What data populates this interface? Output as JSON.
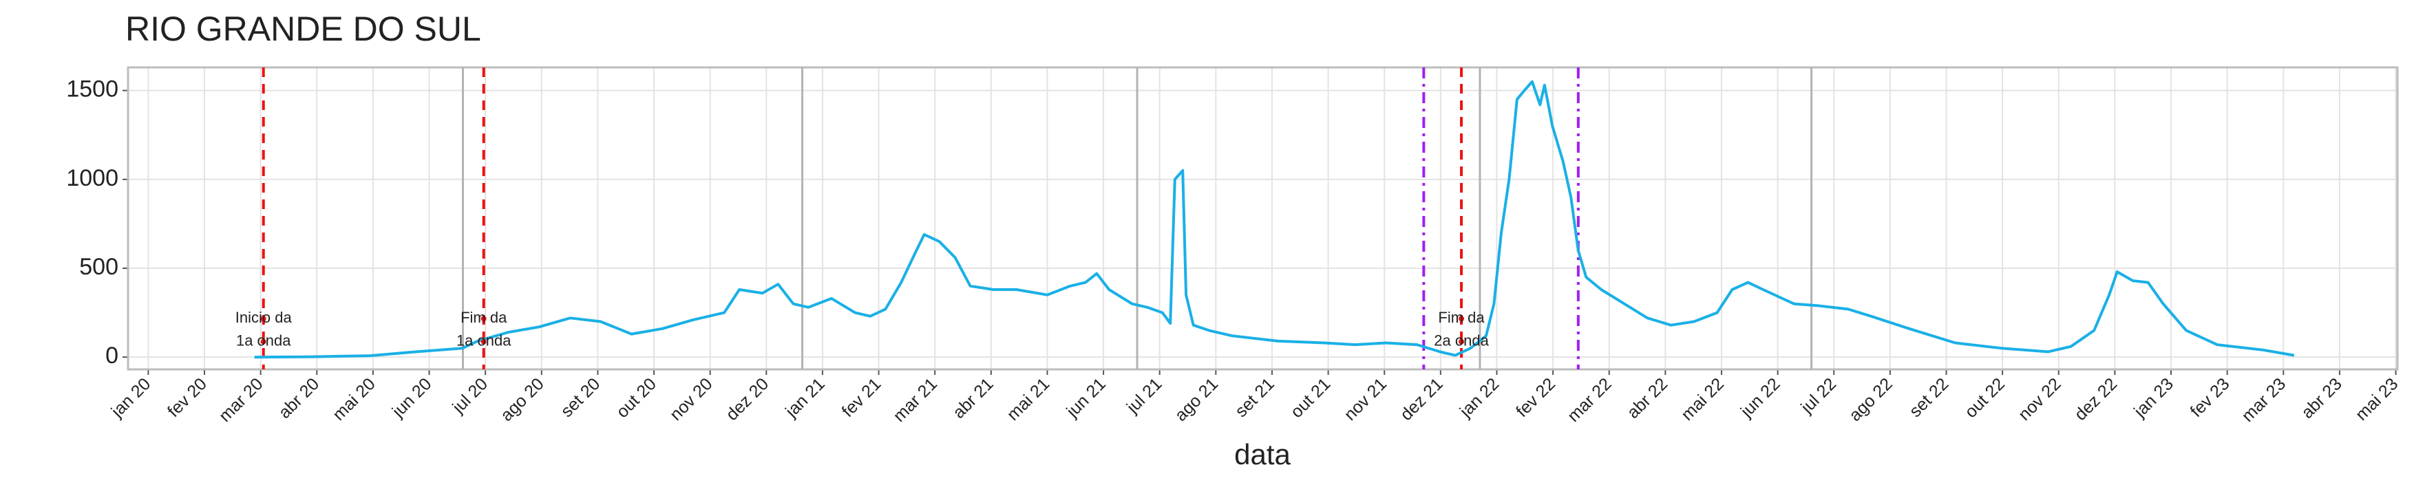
{
  "chart_data": {
    "type": "line",
    "title": "RIO GRANDE DO SUL",
    "x_label": "data",
    "xlim": [
      -0.36,
      40.03
    ],
    "ylim": [
      -69,
      1630
    ],
    "xticks": [
      {
        "value": 0,
        "label": "jan 20"
      },
      {
        "value": 1,
        "label": "fev 20"
      },
      {
        "value": 2,
        "label": "mar 20"
      },
      {
        "value": 3,
        "label": "abr 20"
      },
      {
        "value": 4,
        "label": "mai 20"
      },
      {
        "value": 5,
        "label": "jun 20"
      },
      {
        "value": 6,
        "label": "jul 20"
      },
      {
        "value": 7,
        "label": "ago 20"
      },
      {
        "value": 8,
        "label": "set 20"
      },
      {
        "value": 9,
        "label": "out 20"
      },
      {
        "value": 10,
        "label": "nov 20"
      },
      {
        "value": 11,
        "label": "dez 20"
      },
      {
        "value": 12,
        "label": "jan 21"
      },
      {
        "value": 13,
        "label": "fev 21"
      },
      {
        "value": 14,
        "label": "mar 21"
      },
      {
        "value": 15,
        "label": "abr 21"
      },
      {
        "value": 16,
        "label": "mai 21"
      },
      {
        "value": 17,
        "label": "jun 21"
      },
      {
        "value": 18,
        "label": "jul 21"
      },
      {
        "value": 19,
        "label": "ago 21"
      },
      {
        "value": 20,
        "label": "set 21"
      },
      {
        "value": 21,
        "label": "out 21"
      },
      {
        "value": 22,
        "label": "nov 21"
      },
      {
        "value": 23,
        "label": "dez 21"
      },
      {
        "value": 24,
        "label": "jan 22"
      },
      {
        "value": 25,
        "label": "fev 22"
      },
      {
        "value": 26,
        "label": "mar 22"
      },
      {
        "value": 27,
        "label": "abr 22"
      },
      {
        "value": 28,
        "label": "mai 22"
      },
      {
        "value": 29,
        "label": "jun 22"
      },
      {
        "value": 30,
        "label": "jul 22"
      },
      {
        "value": 31,
        "label": "ago 22"
      },
      {
        "value": 32,
        "label": "set 22"
      },
      {
        "value": 33,
        "label": "out 22"
      },
      {
        "value": 34,
        "label": "nov 22"
      },
      {
        "value": 35,
        "label": "dez 22"
      },
      {
        "value": 36,
        "label": "jan 23"
      },
      {
        "value": 37,
        "label": "fev 23"
      },
      {
        "value": 38,
        "label": "mar 23"
      },
      {
        "value": 39,
        "label": "abr 23"
      },
      {
        "value": 40,
        "label": "mai 23"
      }
    ],
    "yticks": [
      0,
      500,
      1000,
      1500
    ],
    "grid": true,
    "series": [
      {
        "color": "#1ab0e6",
        "x": [
          1.89,
          2.85,
          3.95,
          4.77,
          5.59,
          5.86,
          6.41,
          6.96,
          7.51,
          8.05,
          8.6,
          9.15,
          9.7,
          10.25,
          10.52,
          10.93,
          11.21,
          11.48,
          11.75,
          12.16,
          12.58,
          12.85,
          13.12,
          13.4,
          13.67,
          13.81,
          14.08,
          14.36,
          14.63,
          15.04,
          15.45,
          16.0,
          16.41,
          16.68,
          16.88,
          17.1,
          17.51,
          17.78,
          18.05,
          18.19,
          18.27,
          18.41,
          18.47,
          18.6,
          18.88,
          19.29,
          20.11,
          20.93,
          21.48,
          22.03,
          22.58,
          22.99,
          23.26,
          23.53,
          23.81,
          23.95,
          24.08,
          24.22,
          24.36,
          24.49,
          24.63,
          24.77,
          24.85,
          24.99,
          25.18,
          25.32,
          25.45,
          25.59,
          25.86,
          26.27,
          26.68,
          27.1,
          27.51,
          27.92,
          28.19,
          28.47,
          28.74,
          29.29,
          29.7,
          30.25,
          30.66,
          31.34,
          32.16,
          32.99,
          33.81,
          34.22,
          34.63,
          34.9,
          35.04,
          35.32,
          35.59,
          35.86,
          36.27,
          36.82,
          37.64,
          38.19
        ],
        "values": [
          0,
          2,
          8,
          30,
          50,
          90,
          140,
          170,
          220,
          200,
          130,
          160,
          210,
          250,
          380,
          360,
          410,
          300,
          280,
          330,
          250,
          230,
          270,
          420,
          600,
          690,
          650,
          560,
          400,
          380,
          380,
          350,
          400,
          420,
          470,
          380,
          300,
          280,
          250,
          190,
          1000,
          1050,
          350,
          180,
          150,
          120,
          90,
          80,
          70,
          80,
          70,
          30,
          10,
          50,
          120,
          300,
          700,
          1000,
          1450,
          1500,
          1550,
          1420,
          1530,
          1300,
          1100,
          900,
          600,
          450,
          380,
          300,
          220,
          180,
          200,
          250,
          380,
          420,
          380,
          300,
          290,
          270,
          230,
          160,
          80,
          50,
          30,
          60,
          150,
          350,
          480,
          430,
          420,
          300,
          150,
          70,
          40,
          10
        ]
      }
    ],
    "vlines": [
      {
        "x": 5.6,
        "color": "#b3b3b3",
        "style": "solid"
      },
      {
        "x": 11.64,
        "color": "#b3b3b3",
        "style": "solid"
      },
      {
        "x": 17.6,
        "color": "#b3b3b3",
        "style": "solid"
      },
      {
        "x": 23.7,
        "color": "#b3b3b3",
        "style": "solid"
      },
      {
        "x": 29.6,
        "color": "#b3b3b3",
        "style": "solid"
      },
      {
        "x": 2.05,
        "color": "#ee1111",
        "style": "dashed"
      },
      {
        "x": 5.97,
        "color": "#ee1111",
        "style": "dashed"
      },
      {
        "x": 23.37,
        "color": "#ee1111",
        "style": "dashed"
      },
      {
        "x": 22.7,
        "color": "#a020f0",
        "style": "dashdot"
      },
      {
        "x": 25.45,
        "color": "#a020f0",
        "style": "dashdot"
      }
    ],
    "annotations": [
      {
        "x": 2.05,
        "y": 216,
        "text": "Inicio da"
      },
      {
        "x": 2.05,
        "y": 87,
        "text": "1a onda"
      },
      {
        "x": 5.97,
        "y": 216,
        "text": "Fim da"
      },
      {
        "x": 5.97,
        "y": 87,
        "text": "1a onda"
      },
      {
        "x": 23.37,
        "y": 216,
        "text": "Fim da"
      },
      {
        "x": 23.37,
        "y": 87,
        "text": "2a onda"
      }
    ]
  }
}
